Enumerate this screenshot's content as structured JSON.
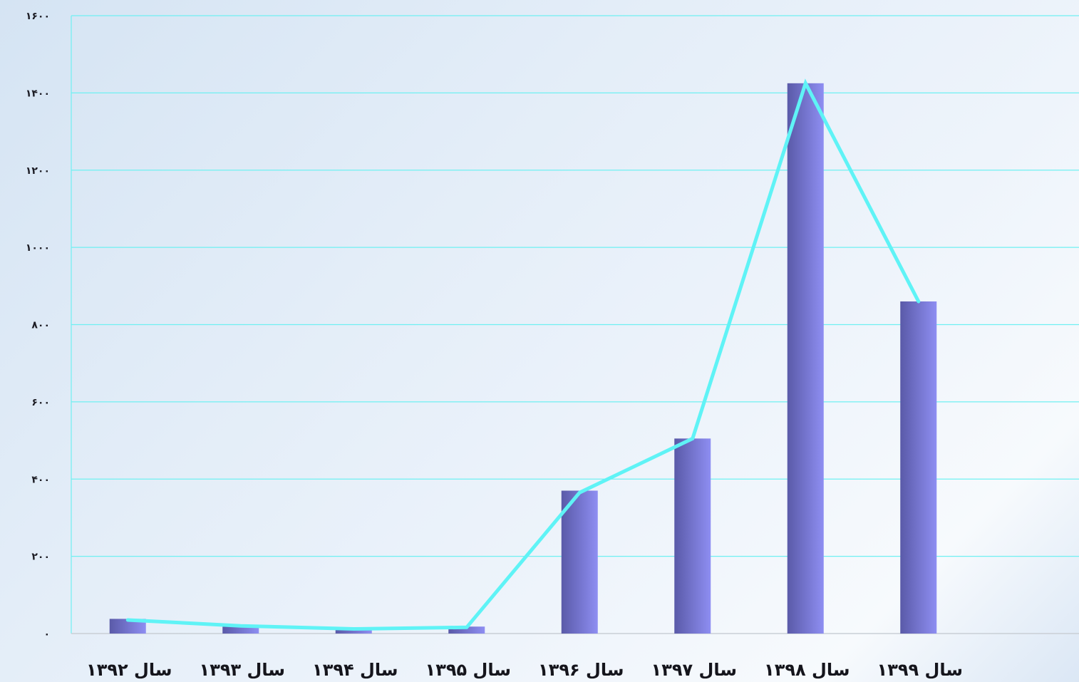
{
  "chart_data": {
    "type": "bar",
    "title": "",
    "xlabel": "",
    "ylabel": "",
    "categories": [
      "سال ۱۳۹۲",
      "سال ۱۳۹۳",
      "سال ۱۳۹۴",
      "سال ۱۳۹۵",
      "سال ۱۳۹۶",
      "سال ۱۳۹۷",
      "سال ۱۳۹۸",
      "سال ۱۳۹۹"
    ],
    "series": [
      {
        "type": "bar",
        "values": [
          38,
          18,
          12,
          18,
          370,
          505,
          1425,
          860
        ]
      },
      {
        "type": "line",
        "values": [
          35,
          20,
          12,
          16,
          365,
          505,
          1425,
          860
        ]
      }
    ],
    "ylim": [
      0,
      1600
    ],
    "yticks": [
      0,
      200,
      400,
      600,
      800,
      1000,
      1200,
      1400,
      1600
    ],
    "ytick_labels": [
      "۰",
      "۲۰۰",
      "۴۰۰",
      "۶۰۰",
      "۸۰۰",
      "۱۰۰۰",
      "۱۲۰۰",
      "۱۴۰۰",
      "۱۶۰۰"
    ],
    "grid": true,
    "legend": "none",
    "colors": {
      "bar_dark": "#5a5aa8",
      "bar_light": "#8e8ef2",
      "line": "#5ff3f6",
      "grid": "#6ff0f2",
      "axis": "#c9cfd6"
    }
  }
}
